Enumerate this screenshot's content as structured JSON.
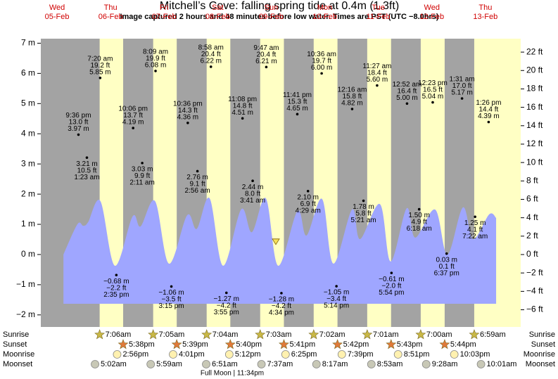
{
  "chart_data": {
    "type": "tide",
    "title": "Mitchell’s Cove: falling  spring tide at 0.4m (1.3ft)",
    "subtitle": "Image captured 2 hours and 48 minutes before low water. Times are PST (UTC −8.0hrs)",
    "current_level_m": 0.4,
    "ylim": [
      -2.4,
      7.15
    ],
    "yticks": [
      {
        "value": -2,
        "label": "−2 m"
      },
      {
        "value": -1,
        "label": "−1 m"
      },
      {
        "value": 0,
        "label": "0 m"
      },
      {
        "value": 1,
        "label": "1 m"
      },
      {
        "value": 2,
        "label": "2 m"
      },
      {
        "value": 3,
        "label": "3 m"
      },
      {
        "value": 4,
        "label": "4 m"
      },
      {
        "value": 5,
        "label": "5 m"
      },
      {
        "value": 6,
        "label": "6 m"
      },
      {
        "value": 7,
        "label": "7 m"
      }
    ],
    "y2lim": [
      -7.87,
      23.46
    ],
    "y2ticks": [
      {
        "value": -6,
        "label": "−6 ft"
      },
      {
        "value": -4,
        "label": "−4 ft"
      },
      {
        "value": -2,
        "label": "−2 ft"
      },
      {
        "value": 0,
        "label": "0 ft"
      },
      {
        "value": 2,
        "label": "2 ft"
      },
      {
        "value": 4,
        "label": "4 ft"
      },
      {
        "value": 6,
        "label": "6 ft"
      },
      {
        "value": 8,
        "label": "8 ft"
      },
      {
        "value": 10,
        "label": "10 ft"
      },
      {
        "value": 12,
        "label": "12 ft"
      },
      {
        "value": 14,
        "label": "14 ft"
      },
      {
        "value": 16,
        "label": "16 ft"
      },
      {
        "value": 18,
        "label": "18 ft"
      },
      {
        "value": 20,
        "label": "20 ft"
      },
      {
        "value": 22,
        "label": "22 ft"
      }
    ],
    "tide_curve": {
      "color": "#9fa6ff",
      "x": [
        0.62,
        0.88,
        0.99,
        1.08,
        1.31,
        1.58,
        1.91,
        2.06,
        2.33,
        2.59,
        2.93,
        3.11,
        3.35,
        3.6,
        3.94,
        4.14,
        4.4,
        4.63,
        4.99,
        5.16,
        5.45,
        5.66,
        6.01,
        6.16,
        6.53,
        6.73,
        7.03,
        7.19,
        7.56,
        7.79,
        8.08,
        8.27,
        8.57,
        8.7
      ],
      "values": [
        0.0,
        1.0,
        0.95,
        1.07,
        1.77,
        -0.37,
        1.26,
        0.93,
        1.77,
        -0.3,
        1.3,
        0.85,
        1.86,
        -0.37,
        1.5,
        0.74,
        1.86,
        -0.37,
        1.44,
        0.63,
        1.84,
        -0.3,
        1.49,
        0.51,
        1.67,
        -0.23,
        1.53,
        0.56,
        1.49,
        0.0,
        1.56,
        0.51,
        1.33,
        1.21
      ]
    },
    "rows": {
      "sunrise": "Sunrise",
      "sunset": "Sunset",
      "moonrise": "Moonrise",
      "moonset": "Moonset"
    },
    "full_moon": "Full Moon | 11:34pm",
    "days": [
      {
        "dow": "Wed",
        "date": "05-Feb",
        "extremes": [
          {
            "time": "9:36 pm",
            "m": 3.97,
            "m_label": "3.97 m",
            "ft_label": "13.0 ft"
          }
        ]
      },
      {
        "dow": "Thu",
        "date": "06-Feb",
        "sunrise": "7:06am",
        "sunset": "5:38pm",
        "moonrise": "2:56pm",
        "moonset": "5:02am",
        "extremes": [
          {
            "time": "1:23 am",
            "m": 3.21,
            "m_label": "3.21 m",
            "ft_label": "10.5 ft"
          },
          {
            "time": "7:20 am",
            "m": 5.85,
            "m_label": "5.85 m",
            "ft_label": "19.2 ft"
          },
          {
            "time": "2:35 pm",
            "m": -0.68,
            "m_label": "−0.68 m",
            "ft_label": "−2.2 ft"
          },
          {
            "time": "10:06 pm",
            "m": 4.19,
            "m_label": "4.19 m",
            "ft_label": "13.7 ft"
          }
        ]
      },
      {
        "dow": "Fri",
        "date": "07-Feb",
        "sunrise": "7:05am",
        "sunset": "5:39pm",
        "moonrise": "4:01pm",
        "moonset": "5:59am",
        "extremes": [
          {
            "time": "2:11 am",
            "m": 3.03,
            "m_label": "3.03 m",
            "ft_label": "9.9 ft"
          },
          {
            "time": "8:09 am",
            "m": 6.08,
            "m_label": "6.08 m",
            "ft_label": "19.9 ft"
          },
          {
            "time": "3:15 pm",
            "m": -1.06,
            "m_label": "−1.06 m",
            "ft_label": "−3.5 ft"
          },
          {
            "time": "10:36 pm",
            "m": 4.36,
            "m_label": "4.36 m",
            "ft_label": "14.3 ft"
          }
        ]
      },
      {
        "dow": "Sat",
        "date": "08-Feb",
        "sunrise": "7:04am",
        "sunset": "5:40pm",
        "moonrise": "5:12pm",
        "moonset": "6:51am",
        "extremes": [
          {
            "time": "2:56 am",
            "m": 2.76,
            "m_label": "2.76 m",
            "ft_label": "9.1 ft"
          },
          {
            "time": "8:58 am",
            "m": 6.22,
            "m_label": "6.22 m",
            "ft_label": "20.4 ft"
          },
          {
            "time": "3:55 pm",
            "m": -1.27,
            "m_label": "−1.27 m",
            "ft_label": "−4.2 ft"
          },
          {
            "time": "11:08 pm",
            "m": 4.51,
            "m_label": "4.51 m",
            "ft_label": "14.8 ft"
          }
        ]
      },
      {
        "dow": "Sun",
        "date": "09-Feb",
        "sunrise": "7:03am",
        "sunset": "5:41pm",
        "moonrise": "6:25pm",
        "moonset": "7:37am",
        "extremes": [
          {
            "time": "3:41 am",
            "m": 2.44,
            "m_label": "2.44 m",
            "ft_label": "8.0 ft"
          },
          {
            "time": "9:47 am",
            "m": 6.21,
            "m_label": "6.21 m",
            "ft_label": "20.4 ft"
          },
          {
            "time": "4:34 pm",
            "m": -1.28,
            "m_label": "−1.28 m",
            "ft_label": "−4.2 ft"
          },
          {
            "time": "11:41 pm",
            "m": 4.65,
            "m_label": "4.65 m",
            "ft_label": "15.3 ft"
          }
        ]
      },
      {
        "dow": "Mon",
        "date": "10-Feb",
        "sunrise": "7:02am",
        "sunset": "5:42pm",
        "moonrise": "7:39pm",
        "moonset": "8:17am",
        "extremes": [
          {
            "time": "4:29 am",
            "m": 2.1,
            "m_label": "2.10 m",
            "ft_label": "6.9 ft"
          },
          {
            "time": "10:36 am",
            "m": 6.0,
            "m_label": "6.00 m",
            "ft_label": "19.7 ft"
          },
          {
            "time": "5:14 pm",
            "m": -1.05,
            "m_label": "−1.05 m",
            "ft_label": "−3.4 ft"
          }
        ]
      },
      {
        "dow": "Tue",
        "date": "11-Feb",
        "sunrise": "7:01am",
        "sunset": "5:43pm",
        "moonrise": "8:51pm",
        "moonset": "8:53am",
        "extremes": [
          {
            "time": "12:16 am",
            "m": 4.82,
            "m_label": "4.82 m",
            "ft_label": "15.8 ft"
          },
          {
            "time": "5:21 am",
            "m": 1.78,
            "m_label": "1.78 m",
            "ft_label": "5.8 ft"
          },
          {
            "time": "11:27 am",
            "m": 5.6,
            "m_label": "5.60 m",
            "ft_label": "18.4 ft"
          },
          {
            "time": "5:54 pm",
            "m": -0.61,
            "m_label": "−0.61 m",
            "ft_label": "−2.0 ft"
          }
        ]
      },
      {
        "dow": "Wed",
        "date": "12-Feb",
        "sunrise": "7:00am",
        "sunset": "5:44pm",
        "moonrise": "10:03pm",
        "moonset": "9:28am",
        "extremes": [
          {
            "time": "12:52 am",
            "m": 5.0,
            "m_label": "5.00 m",
            "ft_label": "16.4 ft"
          },
          {
            "time": "6:18 am",
            "m": 1.5,
            "m_label": "1.50 m",
            "ft_label": "4.9 ft"
          },
          {
            "time": "12:23 pm",
            "m": 5.04,
            "m_label": "5.04 m",
            "ft_label": "16.5 ft"
          },
          {
            "time": "6:37 pm",
            "m": 0.03,
            "m_label": "0.03 m",
            "ft_label": "0.1 ft"
          }
        ]
      },
      {
        "dow": "Thu",
        "date": "13-Feb",
        "sunrise": "6:59am",
        "moonset": "10:01am",
        "extremes": [
          {
            "time": "1:31 am",
            "m": 5.17,
            "m_label": "5.17 m",
            "ft_label": "17.0 ft"
          },
          {
            "time": "7:22 am",
            "m": 1.25,
            "m_label": "1.25 m",
            "ft_label": "4.1 ft"
          },
          {
            "time": "1:26 pm",
            "m": 4.39,
            "m_label": "4.39 m",
            "ft_label": "14.4 ft"
          }
        ]
      }
    ]
  }
}
